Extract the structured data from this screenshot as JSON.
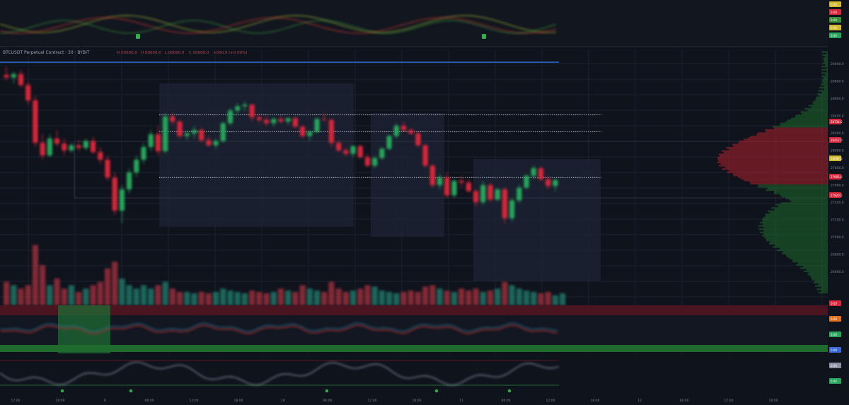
{
  "colors": {
    "background": "#0f131c",
    "bull": "#26a65b",
    "bear": "#d9263a",
    "grid": "#1a2030",
    "box": "#1e2536",
    "pane_divider": "#2a2f3d",
    "price_line": "#2f6fd8",
    "dotted_level": "#c8ccd6"
  },
  "header": {
    "symbol_title": "BTCUSDT Perpetual Contract · 30 · BYBIT",
    "legend_items": [
      "O 00000.0",
      "H 00000.0",
      "L 00000.0",
      "C 00000.0",
      "+000.0 (+0.00%)"
    ]
  },
  "price_axis": {
    "labels": [
      "29000.0",
      "28800.0",
      "28600.0",
      "28400.0",
      "28200.0",
      "28000.0",
      "27800.0",
      "27600.0",
      "27400.0",
      "27200.0",
      "27000.0",
      "26800.0",
      "26600.0"
    ]
  },
  "time_axis": {
    "labels": [
      "12:00",
      "18:00",
      "9",
      "06:00",
      "12:00",
      "18:00",
      "10",
      "06:00",
      "12:00",
      "18:00",
      "11",
      "06:00",
      "12:00",
      "18:00",
      "12",
      "06:00",
      "12:00",
      "18:00"
    ]
  },
  "top_pane_badges": [
    {
      "text": "0.00",
      "color": "#d0b92a"
    },
    {
      "text": "0.00",
      "color": "#d9263a"
    },
    {
      "text": "0.00",
      "color": "#3a8f3a"
    },
    {
      "text": "0.00",
      "color": "#d0b92a"
    },
    {
      "text": "0.00",
      "color": "#26a65b"
    }
  ],
  "right_badges": [
    {
      "text": "28734.0",
      "color": "#d9263a"
    },
    {
      "text": "28412.0",
      "color": "#d9263a"
    },
    {
      "text": "28093.5",
      "color": "#d0b92a"
    },
    {
      "text": "27905.0",
      "color": "#d9263a"
    },
    {
      "text": "27820.5",
      "color": "#d9263a"
    }
  ],
  "lower_badges": [
    {
      "text": "0.00",
      "color": "#d9263a"
    },
    {
      "text": "0.00",
      "color": "#e07020"
    },
    {
      "text": "0.00",
      "color": "#26a65b"
    },
    {
      "text": "0.00",
      "color": "#3a6ad8"
    },
    {
      "text": "0.00",
      "color": "#8a93a6"
    },
    {
      "text": "0.00",
      "color": "#26a65b"
    }
  ],
  "chart_data": {
    "type": "candlestick",
    "y_range": [
      26500,
      29100
    ],
    "levels": [
      28480,
      28280,
      27740
    ],
    "candles": [
      {
        "o": 28950,
        "h": 29050,
        "l": 28880,
        "c": 28920
      },
      {
        "o": 28920,
        "h": 28990,
        "l": 28850,
        "c": 28960
      },
      {
        "o": 28960,
        "h": 29000,
        "l": 28800,
        "c": 28830
      },
      {
        "o": 28830,
        "h": 28870,
        "l": 28600,
        "c": 28650
      },
      {
        "o": 28650,
        "h": 28700,
        "l": 28100,
        "c": 28150
      },
      {
        "o": 28150,
        "h": 28250,
        "l": 27950,
        "c": 28000
      },
      {
        "o": 28000,
        "h": 28250,
        "l": 27980,
        "c": 28200
      },
      {
        "o": 28200,
        "h": 28300,
        "l": 28100,
        "c": 28140
      },
      {
        "o": 28140,
        "h": 28200,
        "l": 28000,
        "c": 28060
      },
      {
        "o": 28060,
        "h": 28150,
        "l": 28030,
        "c": 28120
      },
      {
        "o": 28120,
        "h": 28180,
        "l": 28050,
        "c": 28090
      },
      {
        "o": 28090,
        "h": 28200,
        "l": 28060,
        "c": 28170
      },
      {
        "o": 28170,
        "h": 28220,
        "l": 28020,
        "c": 28040
      },
      {
        "o": 28040,
        "h": 28100,
        "l": 27900,
        "c": 27950
      },
      {
        "o": 27950,
        "h": 28000,
        "l": 27700,
        "c": 27740
      },
      {
        "o": 27740,
        "h": 27800,
        "l": 27300,
        "c": 27350
      },
      {
        "o": 27350,
        "h": 27650,
        "l": 27200,
        "c": 27600
      },
      {
        "o": 27600,
        "h": 27850,
        "l": 27550,
        "c": 27800
      },
      {
        "o": 27800,
        "h": 28000,
        "l": 27750,
        "c": 27950
      },
      {
        "o": 27950,
        "h": 28150,
        "l": 27900,
        "c": 28100
      },
      {
        "o": 28100,
        "h": 28300,
        "l": 28050,
        "c": 28250
      },
      {
        "o": 28250,
        "h": 28350,
        "l": 28000,
        "c": 28050
      },
      {
        "o": 28050,
        "h": 28500,
        "l": 28030,
        "c": 28460
      },
      {
        "o": 28460,
        "h": 28500,
        "l": 28350,
        "c": 28400
      },
      {
        "o": 28400,
        "h": 28420,
        "l": 28200,
        "c": 28230
      },
      {
        "o": 28230,
        "h": 28300,
        "l": 28180,
        "c": 28260
      },
      {
        "o": 28260,
        "h": 28350,
        "l": 28200,
        "c": 28300
      },
      {
        "o": 28300,
        "h": 28330,
        "l": 28150,
        "c": 28180
      },
      {
        "o": 28180,
        "h": 28230,
        "l": 28100,
        "c": 28120
      },
      {
        "o": 28120,
        "h": 28200,
        "l": 28080,
        "c": 28170
      },
      {
        "o": 28170,
        "h": 28400,
        "l": 28150,
        "c": 28380
      },
      {
        "o": 28380,
        "h": 28560,
        "l": 28350,
        "c": 28530
      },
      {
        "o": 28530,
        "h": 28620,
        "l": 28480,
        "c": 28580
      },
      {
        "o": 28580,
        "h": 28640,
        "l": 28520,
        "c": 28600
      },
      {
        "o": 28600,
        "h": 28610,
        "l": 28400,
        "c": 28450
      },
      {
        "o": 28450,
        "h": 28500,
        "l": 28380,
        "c": 28420
      },
      {
        "o": 28420,
        "h": 28460,
        "l": 28350,
        "c": 28380
      },
      {
        "o": 28380,
        "h": 28450,
        "l": 28340,
        "c": 28430
      },
      {
        "o": 28430,
        "h": 28470,
        "l": 28380,
        "c": 28400
      },
      {
        "o": 28400,
        "h": 28450,
        "l": 28360,
        "c": 28440
      },
      {
        "o": 28440,
        "h": 28460,
        "l": 28320,
        "c": 28340
      },
      {
        "o": 28340,
        "h": 28360,
        "l": 28200,
        "c": 28230
      },
      {
        "o": 28230,
        "h": 28300,
        "l": 28170,
        "c": 28280
      },
      {
        "o": 28280,
        "h": 28450,
        "l": 28260,
        "c": 28430
      },
      {
        "o": 28430,
        "h": 28500,
        "l": 28400,
        "c": 28420
      },
      {
        "o": 28420,
        "h": 28440,
        "l": 28100,
        "c": 28150
      },
      {
        "o": 28150,
        "h": 28180,
        "l": 28040,
        "c": 28060
      },
      {
        "o": 28060,
        "h": 28100,
        "l": 27990,
        "c": 28020
      },
      {
        "o": 28020,
        "h": 28120,
        "l": 27980,
        "c": 28110
      },
      {
        "o": 28110,
        "h": 28130,
        "l": 27960,
        "c": 27980
      },
      {
        "o": 27980,
        "h": 28020,
        "l": 27860,
        "c": 27880
      },
      {
        "o": 27880,
        "h": 28000,
        "l": 27850,
        "c": 27970
      },
      {
        "o": 27970,
        "h": 28100,
        "l": 27950,
        "c": 28080
      },
      {
        "o": 28080,
        "h": 28250,
        "l": 28060,
        "c": 28230
      },
      {
        "o": 28230,
        "h": 28380,
        "l": 28200,
        "c": 28350
      },
      {
        "o": 28350,
        "h": 28400,
        "l": 28280,
        "c": 28300
      },
      {
        "o": 28300,
        "h": 28320,
        "l": 28240,
        "c": 28260
      },
      {
        "o": 28260,
        "h": 28290,
        "l": 28100,
        "c": 28120
      },
      {
        "o": 28120,
        "h": 28140,
        "l": 27850,
        "c": 27880
      },
      {
        "o": 27880,
        "h": 27900,
        "l": 27620,
        "c": 27650
      },
      {
        "o": 27650,
        "h": 27780,
        "l": 27600,
        "c": 27740
      },
      {
        "o": 27740,
        "h": 27800,
        "l": 27500,
        "c": 27530
      },
      {
        "o": 27530,
        "h": 27720,
        "l": 27500,
        "c": 27700
      },
      {
        "o": 27700,
        "h": 27760,
        "l": 27620,
        "c": 27680
      },
      {
        "o": 27680,
        "h": 27720,
        "l": 27560,
        "c": 27580
      },
      {
        "o": 27580,
        "h": 27600,
        "l": 27400,
        "c": 27450
      },
      {
        "o": 27450,
        "h": 27700,
        "l": 27420,
        "c": 27650
      },
      {
        "o": 27650,
        "h": 27680,
        "l": 27450,
        "c": 27480
      },
      {
        "o": 27480,
        "h": 27620,
        "l": 27460,
        "c": 27600
      },
      {
        "o": 27600,
        "h": 27630,
        "l": 27200,
        "c": 27260
      },
      {
        "o": 27260,
        "h": 27500,
        "l": 27220,
        "c": 27470
      },
      {
        "o": 27470,
        "h": 27650,
        "l": 27440,
        "c": 27620
      },
      {
        "o": 27620,
        "h": 27780,
        "l": 27600,
        "c": 27760
      },
      {
        "o": 27760,
        "h": 27880,
        "l": 27720,
        "c": 27850
      },
      {
        "o": 27850,
        "h": 27870,
        "l": 27700,
        "c": 27720
      },
      {
        "o": 27720,
        "h": 27760,
        "l": 27600,
        "c": 27640
      },
      {
        "o": 27640,
        "h": 27730,
        "l": 27580,
        "c": 27710
      }
    ],
    "volume": [
      0.35,
      0.3,
      0.25,
      0.3,
      0.9,
      0.6,
      0.3,
      0.4,
      0.25,
      0.3,
      0.2,
      0.25,
      0.3,
      0.35,
      0.55,
      0.65,
      0.4,
      0.3,
      0.25,
      0.3,
      0.25,
      0.3,
      0.35,
      0.25,
      0.2,
      0.2,
      0.18,
      0.2,
      0.18,
      0.2,
      0.25,
      0.22,
      0.2,
      0.18,
      0.22,
      0.2,
      0.18,
      0.2,
      0.25,
      0.22,
      0.2,
      0.3,
      0.25,
      0.22,
      0.2,
      0.35,
      0.25,
      0.2,
      0.22,
      0.25,
      0.3,
      0.28,
      0.22,
      0.2,
      0.18,
      0.2,
      0.22,
      0.2,
      0.28,
      0.3,
      0.25,
      0.22,
      0.2,
      0.25,
      0.22,
      0.25,
      0.2,
      0.22,
      0.25,
      0.35,
      0.3,
      0.25,
      0.22,
      0.2,
      0.18,
      0.2,
      0.15,
      0.18
    ]
  }
}
